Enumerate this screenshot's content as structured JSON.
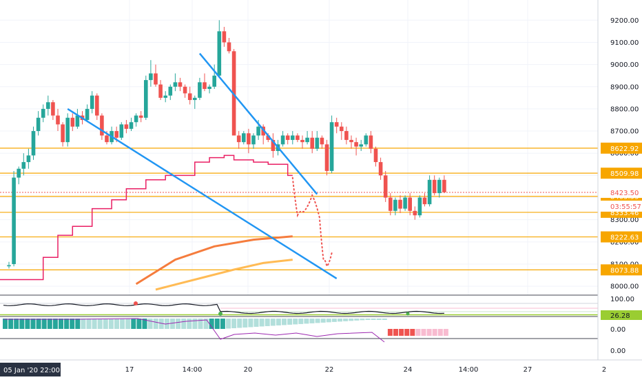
{
  "chart_data": {
    "type": "candlestick",
    "title": "",
    "xlabel": "",
    "ylabel": "",
    "ylim": [
      7960,
      9260
    ],
    "y_ticks": [
      8000,
      8100,
      8200,
      8300,
      8400,
      8500,
      8600,
      8700,
      8800,
      8900,
      9000,
      9100,
      9200
    ],
    "y_tick_labels": [
      "8000.00",
      "8100.00",
      "8200.00",
      "8300.00",
      "8400.00",
      "8500.00",
      "8600.00",
      "8700.00",
      "8800.00",
      "8900.00",
      "9000.00",
      "9100.00",
      "9200.00"
    ],
    "x_tick_labels": [
      "17",
      "14:00",
      "20",
      "22",
      "24",
      "14:00",
      "27",
      "2"
    ],
    "x_cursor_label": "05 Jan '20  22:00",
    "colors": {
      "up": "#26a69a",
      "down": "#ef5350",
      "level": "#f7a600",
      "channel": "#2196f3",
      "line_red": "#e91e63",
      "ma_fast": "#f57c3d",
      "ma_slow": "#ffbb55",
      "projection": "#ef5350"
    },
    "candles": [
      [
        8090,
        8110,
        8080,
        8095
      ],
      [
        8100,
        8520,
        8090,
        8490
      ],
      [
        8490,
        8540,
        8460,
        8530
      ],
      [
        8530,
        8600,
        8500,
        8560
      ],
      [
        8560,
        8620,
        8530,
        8590
      ],
      [
        8590,
        8720,
        8570,
        8700
      ],
      [
        8700,
        8790,
        8680,
        8760
      ],
      [
        8760,
        8820,
        8740,
        8800
      ],
      [
        8800,
        8860,
        8770,
        8830
      ],
      [
        8830,
        8840,
        8750,
        8770
      ],
      [
        8770,
        8800,
        8700,
        8730
      ],
      [
        8730,
        8740,
        8630,
        8650
      ],
      [
        8650,
        8780,
        8630,
        8760
      ],
      [
        8760,
        8780,
        8700,
        8720
      ],
      [
        8720,
        8800,
        8710,
        8770
      ],
      [
        8770,
        8790,
        8730,
        8750
      ],
      [
        8750,
        8820,
        8740,
        8800
      ],
      [
        8800,
        8880,
        8780,
        8860
      ],
      [
        8860,
        8870,
        8750,
        8770
      ],
      [
        8770,
        8780,
        8660,
        8680
      ],
      [
        8680,
        8700,
        8640,
        8650
      ],
      [
        8650,
        8720,
        8640,
        8700
      ],
      [
        8700,
        8720,
        8650,
        8670
      ],
      [
        8670,
        8740,
        8660,
        8730
      ],
      [
        8730,
        8750,
        8690,
        8710
      ],
      [
        8710,
        8760,
        8700,
        8740
      ],
      [
        8740,
        8780,
        8720,
        8770
      ],
      [
        8770,
        8790,
        8740,
        8760
      ],
      [
        8760,
        8950,
        8750,
        8930
      ],
      [
        8930,
        9020,
        8900,
        8960
      ],
      [
        8960,
        9000,
        8900,
        8910
      ],
      [
        8910,
        8930,
        8840,
        8850
      ],
      [
        8850,
        8880,
        8830,
        8860
      ],
      [
        8860,
        8910,
        8840,
        8900
      ],
      [
        8900,
        8960,
        8880,
        8920
      ],
      [
        8920,
        8940,
        8880,
        8900
      ],
      [
        8900,
        8910,
        8850,
        8870
      ],
      [
        8870,
        8900,
        8820,
        8840
      ],
      [
        8840,
        8860,
        8800,
        8850
      ],
      [
        8850,
        8940,
        8840,
        8920
      ],
      [
        8920,
        8960,
        8880,
        8890
      ],
      [
        8890,
        8910,
        8870,
        8900
      ],
      [
        8900,
        9000,
        8890,
        8950
      ],
      [
        8950,
        9200,
        8940,
        9150
      ],
      [
        9150,
        9170,
        9080,
        9100
      ],
      [
        9100,
        9120,
        9050,
        9060
      ],
      [
        9060,
        9070,
        8680,
        8680
      ],
      [
        8680,
        8700,
        8620,
        8650
      ],
      [
        8650,
        8700,
        8640,
        8690
      ],
      [
        8690,
        8710,
        8600,
        8640
      ],
      [
        8640,
        8690,
        8620,
        8680
      ],
      [
        8680,
        8750,
        8660,
        8720
      ],
      [
        8720,
        8730,
        8640,
        8680
      ],
      [
        8680,
        8690,
        8650,
        8660
      ],
      [
        8660,
        8690,
        8580,
        8610
      ],
      [
        8610,
        8660,
        8590,
        8640
      ],
      [
        8640,
        8700,
        8630,
        8680
      ],
      [
        8680,
        8690,
        8640,
        8660
      ],
      [
        8660,
        8700,
        8640,
        8680
      ],
      [
        8680,
        8690,
        8650,
        8660
      ],
      [
        8660,
        8680,
        8620,
        8650
      ],
      [
        8650,
        8700,
        8640,
        8670
      ],
      [
        8670,
        8700,
        8600,
        8620
      ],
      [
        8620,
        8700,
        8610,
        8670
      ],
      [
        8670,
        8680,
        8620,
        8640
      ],
      [
        8640,
        8660,
        8500,
        8520
      ],
      [
        8520,
        8770,
        8510,
        8740
      ],
      [
        8740,
        8760,
        8690,
        8720
      ],
      [
        8720,
        8740,
        8660,
        8700
      ],
      [
        8700,
        8720,
        8640,
        8660
      ],
      [
        8660,
        8680,
        8620,
        8650
      ],
      [
        8650,
        8670,
        8590,
        8630
      ],
      [
        8630,
        8660,
        8610,
        8640
      ],
      [
        8640,
        8690,
        8630,
        8680
      ],
      [
        8680,
        8700,
        8600,
        8620
      ],
      [
        8620,
        8630,
        8540,
        8560
      ],
      [
        8560,
        8580,
        8480,
        8500
      ],
      [
        8500,
        8520,
        8380,
        8400
      ],
      [
        8400,
        8420,
        8320,
        8340
      ],
      [
        8340,
        8400,
        8320,
        8390
      ],
      [
        8390,
        8410,
        8330,
        8350
      ],
      [
        8350,
        8410,
        8340,
        8400
      ],
      [
        8400,
        8420,
        8320,
        8340
      ],
      [
        8340,
        8360,
        8300,
        8320
      ],
      [
        8320,
        8410,
        8310,
        8400
      ],
      [
        8400,
        8420,
        8360,
        8370
      ],
      [
        8370,
        8500,
        8360,
        8480
      ],
      [
        8480,
        8500,
        8410,
        8420
      ],
      [
        8420,
        8490,
        8400,
        8480
      ],
      [
        8480,
        8500,
        8420,
        8424
      ]
    ],
    "horizontal_levels": [
      {
        "value": 8622.92,
        "label": "8622.92"
      },
      {
        "value": 8509.98,
        "label": "8509.98"
      },
      {
        "value": 8405.53,
        "label": "8405.53"
      },
      {
        "value": 8333.46,
        "label": "8333.46"
      },
      {
        "value": 8222.63,
        "label": "8222.63"
      },
      {
        "value": 8073.88,
        "label": "8073.88"
      }
    ],
    "last_price": {
      "value": 8423.5,
      "label": "8423.50",
      "countdown": "03:55:57"
    },
    "channel_upper": [
      [
        39,
        9050
      ],
      [
        63,
        8415
      ]
    ],
    "channel_lower": [
      [
        12,
        8800
      ],
      [
        67,
        8035
      ]
    ],
    "staircase_line": [
      [
        -2,
        8030
      ],
      [
        7,
        8030
      ],
      [
        7,
        8130
      ],
      [
        10,
        8130
      ],
      [
        10,
        8230
      ],
      [
        13,
        8230
      ],
      [
        13,
        8270
      ],
      [
        17,
        8270
      ],
      [
        17,
        8350
      ],
      [
        21,
        8350
      ],
      [
        21,
        8390
      ],
      [
        24,
        8390
      ],
      [
        24,
        8440
      ],
      [
        28,
        8440
      ],
      [
        28,
        8480
      ],
      [
        32,
        8480
      ],
      [
        32,
        8500
      ],
      [
        38,
        8500
      ],
      [
        38,
        8560
      ],
      [
        41,
        8560
      ],
      [
        41,
        8580
      ],
      [
        44,
        8580
      ],
      [
        44,
        8590
      ],
      [
        46,
        8590
      ],
      [
        46,
        8570
      ],
      [
        50,
        8570
      ],
      [
        50,
        8560
      ],
      [
        53,
        8560
      ],
      [
        53,
        8550
      ],
      [
        57,
        8550
      ],
      [
        57,
        8500
      ],
      [
        58,
        8500
      ]
    ],
    "ma_fast": [
      [
        26,
        8010
      ],
      [
        34,
        8120
      ],
      [
        42,
        8180
      ],
      [
        50,
        8210
      ],
      [
        58,
        8225
      ]
    ],
    "ma_slow": [
      [
        30,
        7985
      ],
      [
        38,
        8030
      ],
      [
        46,
        8075
      ],
      [
        52,
        8105
      ],
      [
        58,
        8120
      ]
    ],
    "projection": [
      [
        58,
        8490
      ],
      [
        59,
        8320
      ],
      [
        60.2,
        8335
      ],
      [
        62,
        8410
      ],
      [
        63.5,
        8310
      ],
      [
        64.3,
        8120
      ],
      [
        65,
        8090
      ],
      [
        66,
        8150
      ]
    ],
    "indicator_labels": [
      "100.00",
      "26.28",
      "0.00",
      "0.00"
    ]
  }
}
